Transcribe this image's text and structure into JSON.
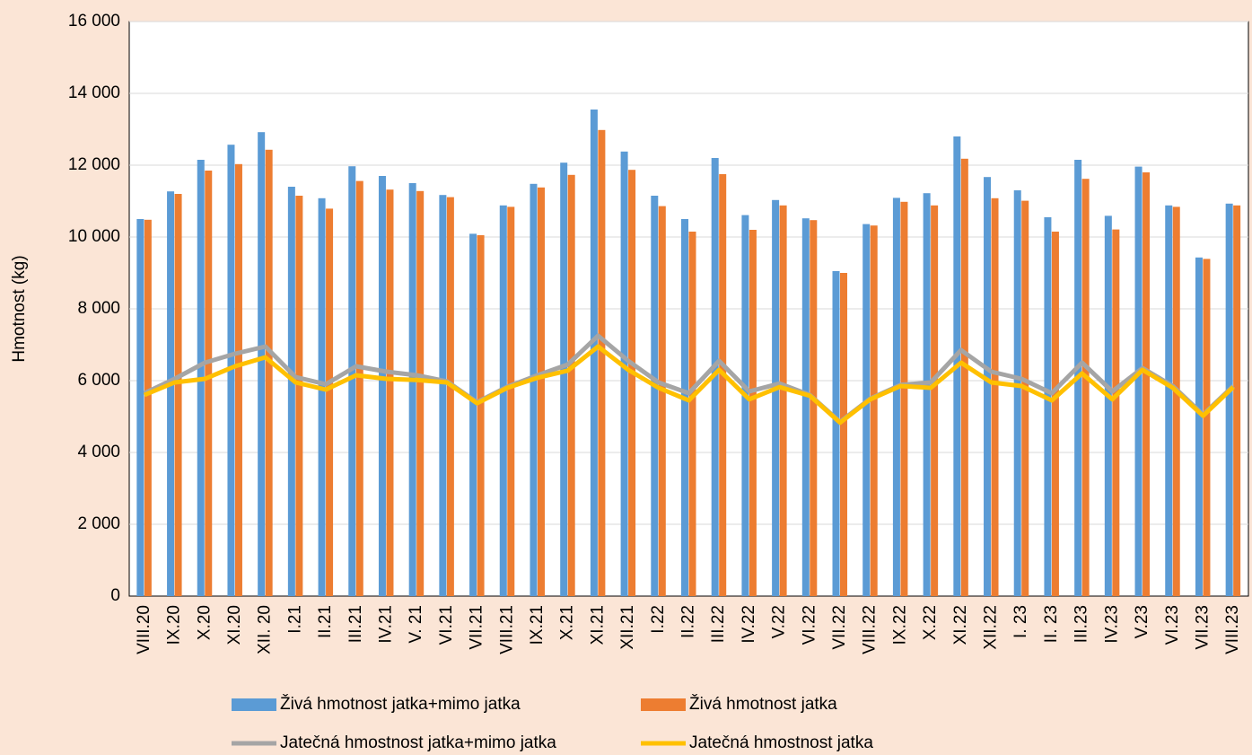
{
  "chart_data": {
    "type": "bar",
    "y_label": "Hmotnost (kg)",
    "categories": [
      "VIII.20",
      "IX.20",
      "X.20",
      "XI.20",
      "XII. 20",
      "I.21",
      "II.21",
      "III.21",
      "IV.21",
      "V. 21",
      "VI.21",
      "VII.21",
      "VIII.21",
      "IX.21",
      "X.21",
      "XI.21",
      "XII.21",
      "I.22",
      "II.22",
      "III.22",
      "IV.22",
      "V.22",
      "VI.22",
      "VII.22",
      "VIII.22",
      "IX.22",
      "X.22",
      "XI.22",
      "XII.22",
      "I. 23",
      "II. 23",
      "III.23",
      "IV.23",
      "V.23",
      "VI.23",
      "VII.23",
      "VIII.23"
    ],
    "series": [
      {
        "name": "Živá hmotnost jatka+mimo jatka",
        "type": "bar",
        "color": "#5b9bd5",
        "values": [
          10500,
          11270,
          12150,
          12570,
          12920,
          11400,
          11080,
          11970,
          11700,
          11500,
          11170,
          10090,
          10880,
          11480,
          12070,
          13550,
          12380,
          11150,
          10500,
          12200,
          10610,
          11030,
          10520,
          9050,
          10360,
          11090,
          11220,
          12800,
          11670,
          11300,
          10550,
          12150,
          10590,
          11960,
          10880,
          9430,
          10930
        ]
      },
      {
        "name": "Živá hmotnost jatka",
        "type": "bar",
        "color": "#ed7d31",
        "values": [
          10480,
          11200,
          11850,
          12030,
          12430,
          11150,
          10790,
          11560,
          11320,
          11280,
          11110,
          10050,
          10840,
          11380,
          11730,
          12980,
          11870,
          10860,
          10150,
          11750,
          10200,
          10880,
          10470,
          9000,
          10320,
          10980,
          10880,
          12180,
          11080,
          11010,
          10150,
          11620,
          10210,
          11800,
          10840,
          9390,
          10880
        ]
      },
      {
        "name": "Jatečná hmostnost jatka+mimo jatka",
        "type": "line",
        "color": "#a5a5a5",
        "values": [
          5650,
          6050,
          6500,
          6750,
          6950,
          6100,
          5900,
          6400,
          6250,
          6150,
          5980,
          5400,
          5830,
          6150,
          6450,
          7250,
          6550,
          5950,
          5650,
          6550,
          5700,
          5920,
          5600,
          4850,
          5500,
          5880,
          5950,
          6850,
          6250,
          6050,
          5650,
          6500,
          5700,
          6350,
          5850,
          5050,
          5850
        ]
      },
      {
        "name": "Jatečná hmostnost jatka",
        "type": "line",
        "color": "#ffc000",
        "values": [
          5600,
          5950,
          6050,
          6400,
          6650,
          5950,
          5750,
          6150,
          6050,
          6020,
          5950,
          5370,
          5800,
          6080,
          6280,
          6950,
          6300,
          5800,
          5450,
          6300,
          5480,
          5820,
          5580,
          4830,
          5480,
          5850,
          5800,
          6500,
          5950,
          5850,
          5450,
          6200,
          5480,
          6300,
          5800,
          5020,
          5820
        ]
      }
    ],
    "ylim": [
      0,
      16000
    ],
    "yticks": [
      0,
      {
        "value": 2000,
        "label": "2 000"
      },
      {
        "value": 4000,
        "label": "4 000"
      },
      {
        "value": 6000,
        "label": "6 000"
      },
      {
        "value": 8000,
        "label": "8 000"
      },
      {
        "value": 10000,
        "label": "10 000"
      },
      {
        "value": 12000,
        "label": "12 000"
      },
      {
        "value": 14000,
        "label": "14 000"
      },
      {
        "value": 16000,
        "label": "16 000"
      }
    ],
    "grid": true
  }
}
